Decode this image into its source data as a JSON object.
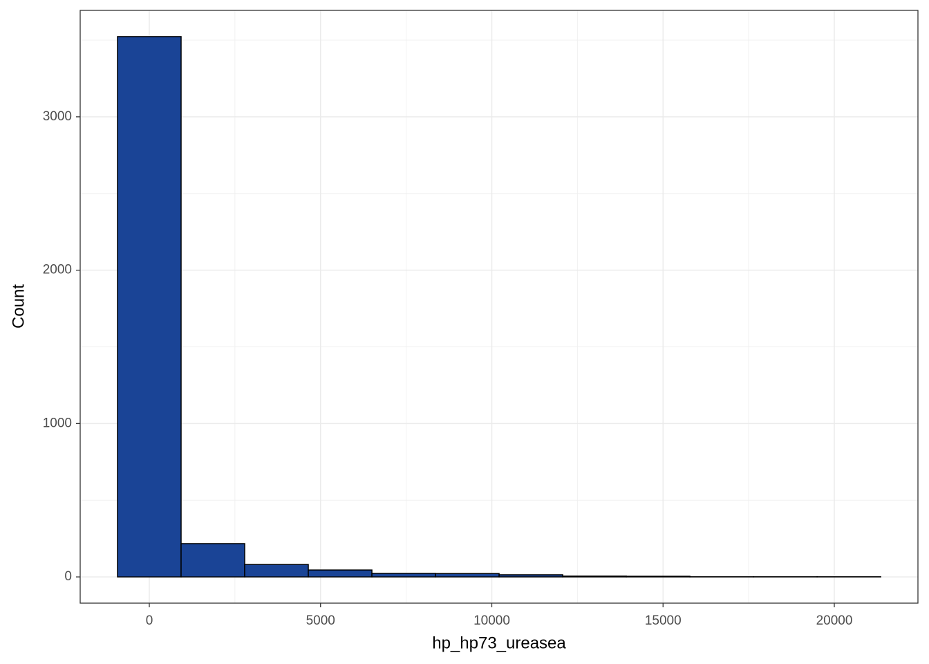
{
  "chart_data": {
    "type": "histogram",
    "x_label": "hp_hp73_ureasea",
    "y_label": "Count",
    "bins": [
      -928.5,
      928.5,
      2785.5,
      4642.5,
      6499.5,
      8356.5,
      10213.5,
      12070.5,
      13927.5,
      15784.5,
      17641.5,
      19498.5,
      21355.5
    ],
    "counts": [
      3523,
      217,
      81,
      45,
      23,
      22,
      14,
      5,
      4,
      1,
      1,
      1
    ],
    "color": "#1a4496",
    "edge_color": "#000000",
    "xlim": [
      -2018,
      22442
    ],
    "xticks": [
      0,
      5000,
      10000,
      15000,
      20000
    ],
    "ylim": [
      -171,
      3694
    ],
    "yticks": [
      0,
      1000,
      2000,
      3000
    ],
    "grid": true
  }
}
